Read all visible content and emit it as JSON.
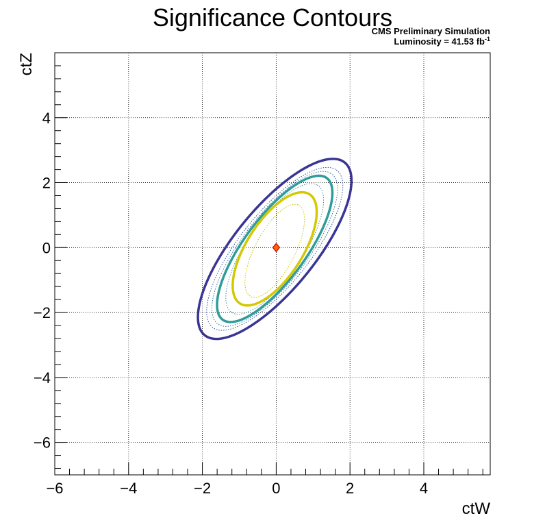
{
  "chart_data": {
    "type": "contour",
    "title": "Significance Contours",
    "annotations": {
      "line1": "CMS Preliminary Simulation",
      "line2_prefix": "Luminosity = 41.53 fb",
      "line2_sup": "-1"
    },
    "xlabel": "ctW",
    "ylabel": "ctZ",
    "xlim": [
      -6,
      5.8
    ],
    "ylim": [
      -7,
      6
    ],
    "x_ticks": [
      -6,
      -4,
      -2,
      0,
      2,
      4
    ],
    "y_ticks": [
      -6,
      -4,
      -2,
      0,
      2,
      4
    ],
    "x_tick_labels": [
      "−6",
      "−4",
      "−2",
      "0",
      "2",
      "4"
    ],
    "y_tick_labels": [
      "−6",
      "−4",
      "−2",
      "0",
      "2",
      "4"
    ],
    "grid": true,
    "best_fit": {
      "x": 0,
      "y": 0,
      "color": "#ff6600",
      "outline": "#cc0000"
    },
    "contours": [
      {
        "name": "c1",
        "style": "solid",
        "color": "#3a3594",
        "center": [
          -0.04,
          -0.04
        ],
        "semi_axes": [
          3.27,
          1.15
        ],
        "angle_deg": 55.5
      },
      {
        "name": "c2",
        "style": "dotted",
        "color": "#2f4fa0",
        "center": [
          -0.04,
          -0.04
        ],
        "semi_axes": [
          2.95,
          1.0
        ],
        "angle_deg": 56
      },
      {
        "name": "c3",
        "style": "dotted",
        "color": "#2d6fa3",
        "center": [
          -0.04,
          -0.04
        ],
        "semi_axes": [
          2.78,
          0.93
        ],
        "angle_deg": 57
      },
      {
        "name": "c4",
        "style": "solid",
        "color": "#2e9c98",
        "center": [
          -0.04,
          -0.04
        ],
        "semi_axes": [
          2.6,
          0.87
        ],
        "angle_deg": 58
      },
      {
        "name": "c5",
        "style": "dotted",
        "color": "#3f8fa0",
        "center": [
          -0.04,
          -0.04
        ],
        "semi_axes": [
          2.28,
          0.78
        ],
        "angle_deg": 60
      },
      {
        "name": "c6",
        "style": "solid",
        "color": "#d4c800",
        "center": [
          -0.04,
          -0.04
        ],
        "semi_axes": [
          1.93,
          0.78
        ],
        "angle_deg": 62
      },
      {
        "name": "c7",
        "style": "dotted",
        "color": "#c8c000",
        "center": [
          -0.04,
          -0.1
        ],
        "semi_axes": [
          1.55,
          0.55
        ],
        "angle_deg": 66
      }
    ]
  }
}
